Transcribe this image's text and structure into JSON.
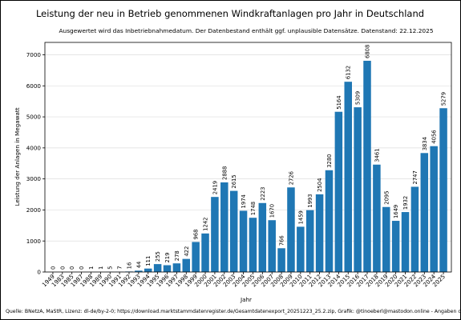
{
  "chart_data": {
    "type": "bar",
    "title": "Leistung der neu in Betrieb genommenen Windkraftanlagen pro Jahr in Deutschland",
    "subtitle": "Ausgewertet wird das Inbetriebnahmedatum. Der Datenbestand enthält ggf. unplausible Datensätze. Datenstand: 22.12.2025",
    "xlabel": "Jahr",
    "ylabel": "Leistung der Anlagen in Megawatt",
    "ylim": [
      0,
      7400
    ],
    "yticks": [
      "0",
      "1000",
      "2000",
      "3000",
      "4000",
      "5000",
      "6000",
      "7000"
    ],
    "grid": "horizontal",
    "bar_color": "#1f77b4",
    "categories": [
      "1949",
      "1983",
      "1985",
      "1987",
      "1988",
      "1989",
      "1990",
      "1991",
      "1992",
      "1993",
      "1994",
      "1995",
      "1996",
      "1997",
      "1998",
      "1999",
      "2000",
      "2001",
      "2002",
      "2003",
      "2004",
      "2005",
      "2006",
      "2007",
      "2008",
      "2009",
      "2010",
      "2011",
      "2012",
      "2013",
      "2014",
      "2015",
      "2016",
      "2017",
      "2018",
      "2019",
      "2020",
      "2021",
      "2022",
      "2023",
      "2024",
      "2025"
    ],
    "values": [
      0,
      0,
      0,
      0,
      1,
      1,
      5,
      7,
      16,
      44,
      111,
      255,
      219,
      278,
      422,
      968,
      1242,
      2419,
      2888,
      2615,
      1974,
      1748,
      2223,
      1670,
      766,
      2726,
      1459,
      1993,
      2504,
      3280,
      5164,
      6132,
      5309,
      6808,
      3461,
      2095,
      1649,
      1932,
      2747,
      3834,
      4056,
      5279
    ],
    "source": "Quelle: BNetzA, MaStR, Lizenz: dl-de/by-2-0; https://download.marktstammdatenregister.de/Gesamtdatenexport_20251223_25.2.zip, Grafik: @tinoeberl@mastodon.online - Angaben ohne Gewähr."
  }
}
